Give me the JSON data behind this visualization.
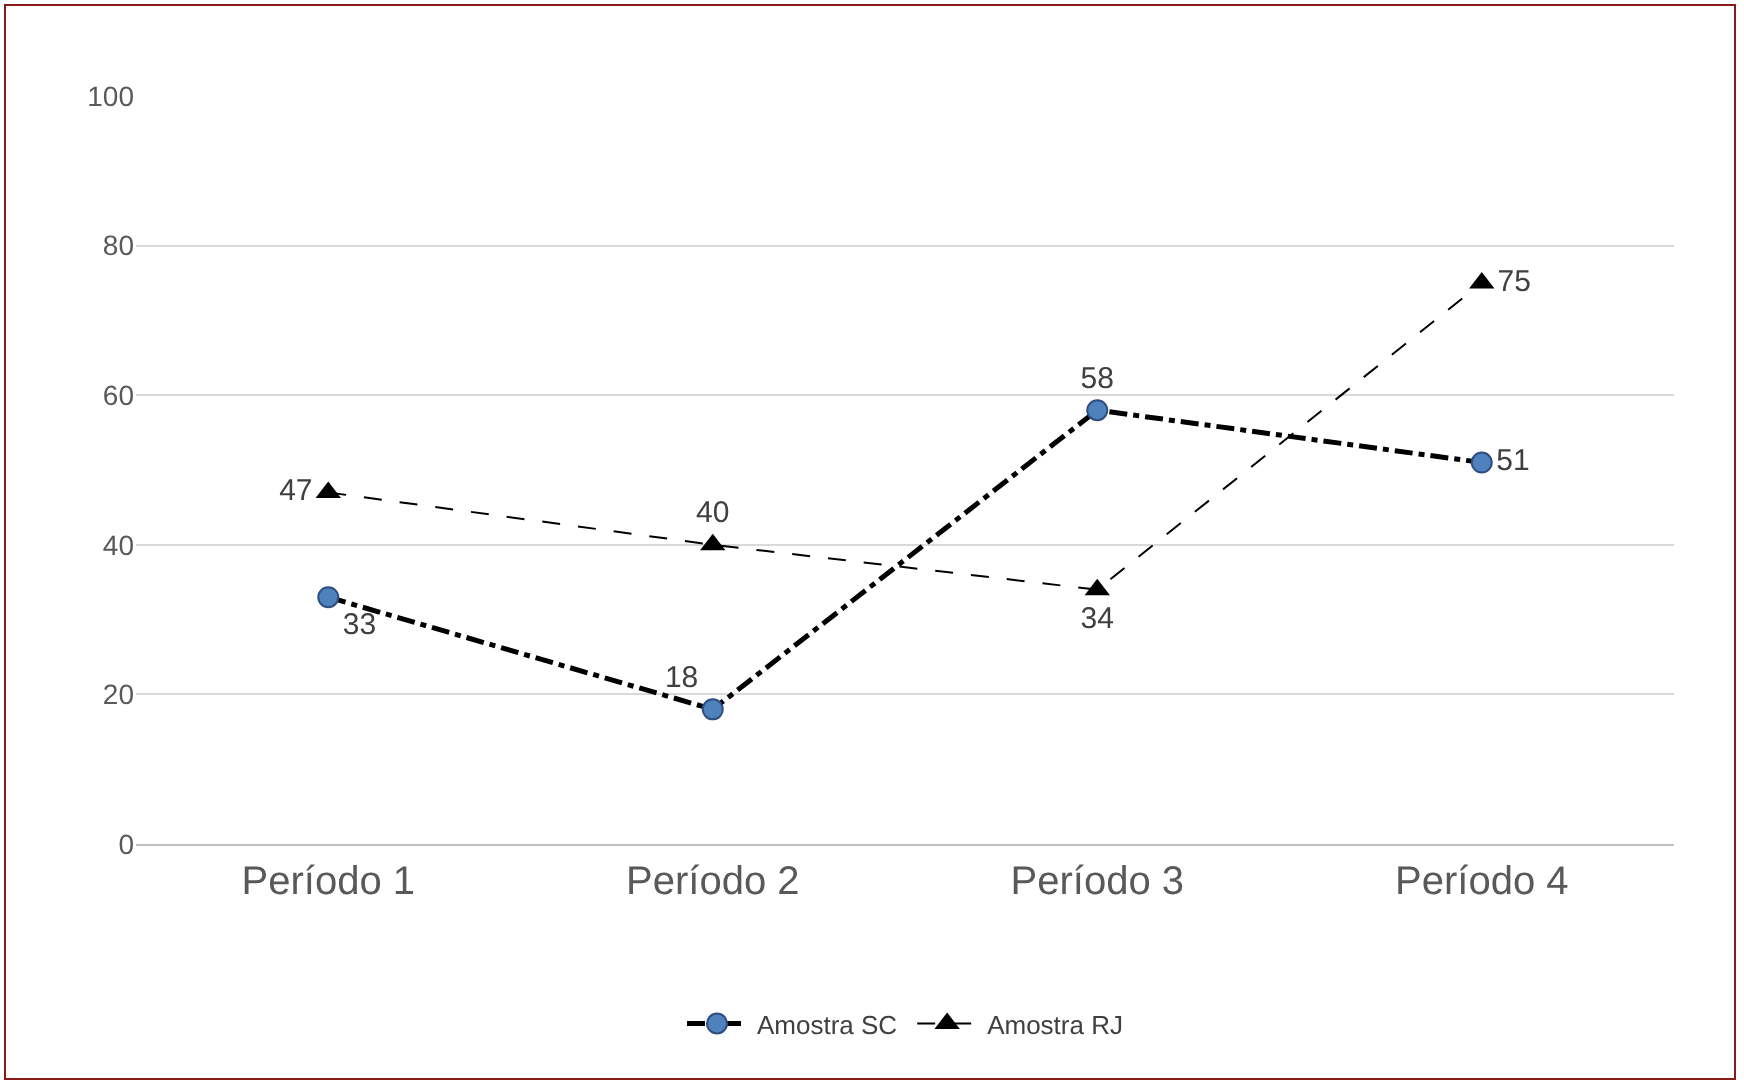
{
  "chart_data": {
    "type": "line",
    "categories": [
      "Período 1",
      "Período 2",
      "Período 3",
      "Período 4"
    ],
    "series": [
      {
        "name": "Amostra SC",
        "color": "#4f81bd",
        "values": [
          33,
          18,
          58,
          51
        ],
        "marker": "circle",
        "line_style": "dashed"
      },
      {
        "name": "Amostra RJ",
        "color": "#000000",
        "values": [
          47,
          40,
          34,
          75
        ],
        "marker": "triangle",
        "line_style": "dotted"
      }
    ],
    "ylim": [
      0,
      100
    ],
    "yticks": [
      0,
      20,
      40,
      60,
      80,
      100
    ],
    "grid": "y",
    "legend": "bottom",
    "data_labels": true
  }
}
